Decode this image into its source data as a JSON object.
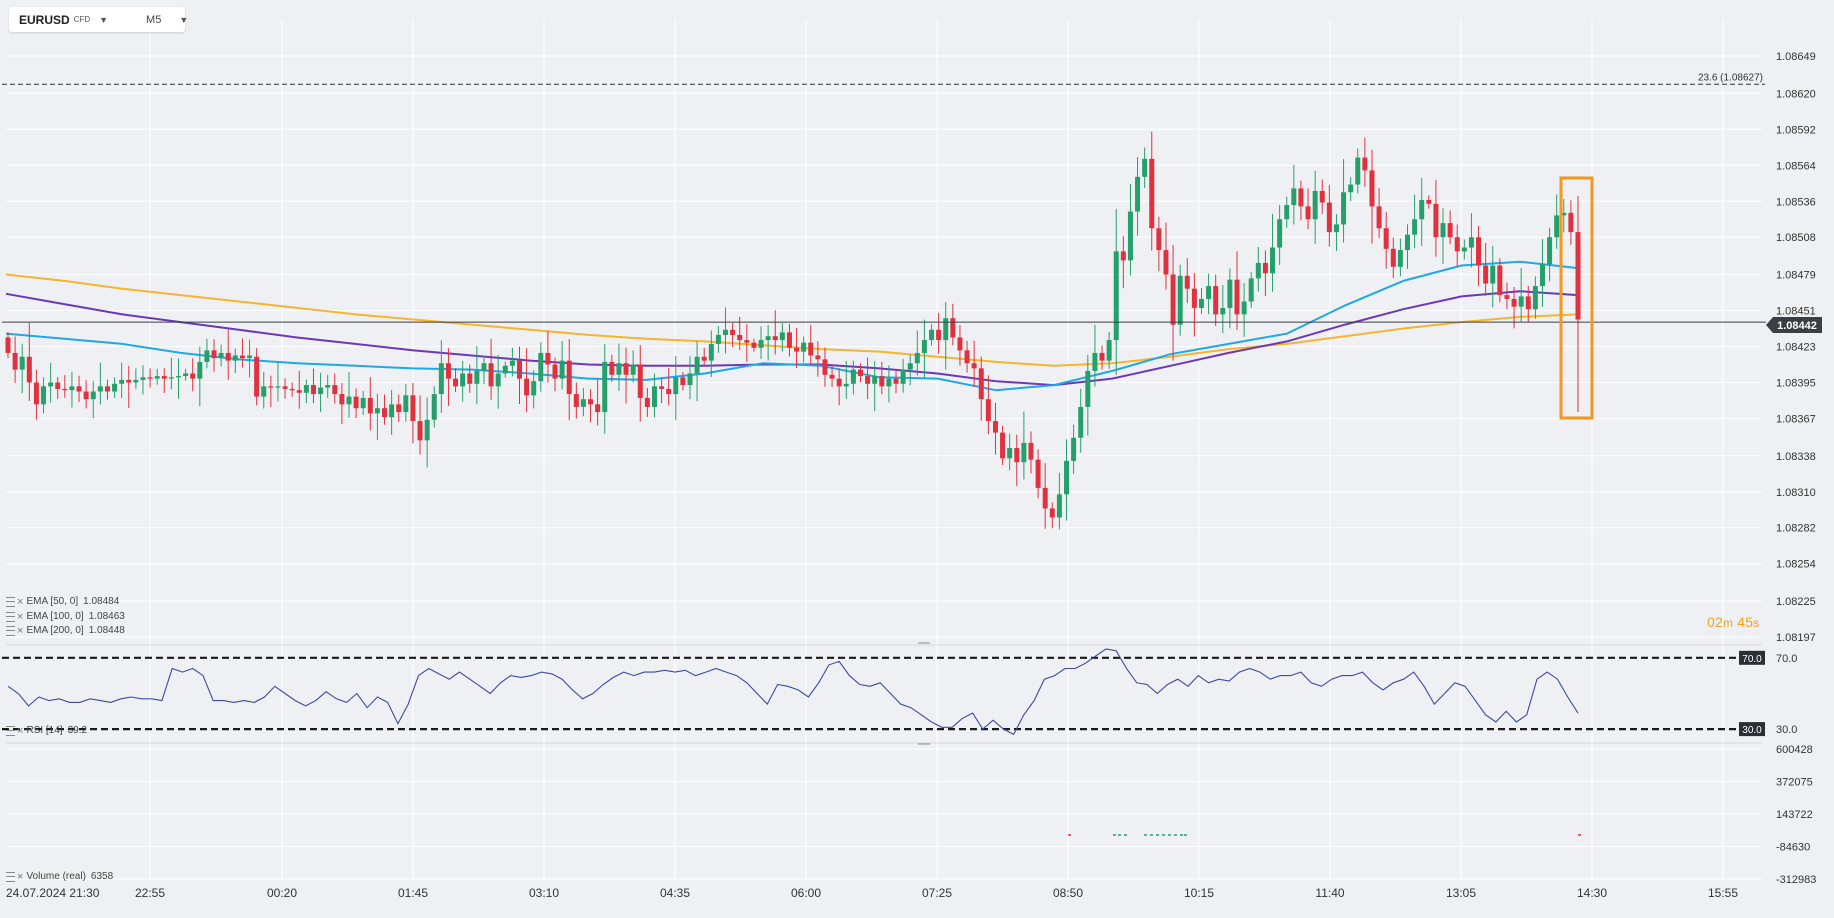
{
  "symbol": {
    "name": "EURUSD",
    "type": "CFD",
    "timeframe": "M5"
  },
  "countdown": {
    "minutes": "02",
    "min_unit": "m",
    "seconds": "45",
    "sec_unit": "s"
  },
  "indicators": {
    "ema50": {
      "label": "EMA  [50,  0]",
      "value": "1.08484",
      "color": "#1ea8e6"
    },
    "ema100": {
      "label": "EMA  [100,  0]",
      "value": "1.08463",
      "color": "#6c38b8"
    },
    "ema200": {
      "label": "EMA  [200,  0]",
      "value": "1.08448",
      "color": "#f5b52e"
    },
    "rsi": {
      "label": "RSI  [14]",
      "value": "39.2",
      "color": "#3d4a9c"
    },
    "volume": {
      "label": "Volume  (real)",
      "value": "6358"
    }
  },
  "fib_label": "23.6 (1.08627)",
  "current_price_label": "1.08442",
  "chart_data": [
    {
      "type": "candlestick",
      "title": "",
      "y_ticks": [
        "1.08649",
        "1.08620",
        "1.08592",
        "1.08564",
        "1.08536",
        "1.08508",
        "1.08479",
        "1.08451",
        "1.08423",
        "1.08395",
        "1.08367",
        "1.08338",
        "1.08310",
        "1.08282",
        "1.08254",
        "1.08225",
        "1.08197"
      ],
      "x_ticks": [
        "24.07.2024  21:30",
        "22:55",
        "00:20",
        "01:45",
        "03:10",
        "04:35",
        "06:00",
        "07:25",
        "08:50",
        "10:15",
        "11:40",
        "13:05",
        "14:30",
        "15:55"
      ],
      "ylim": [
        1.08197,
        1.08649
      ],
      "current_price": 1.08442,
      "fib_level": {
        "label": "23.6",
        "value": 1.08627
      },
      "up_color": "#26a06b",
      "down_color": "#e0313f",
      "closes": [
        1.08418,
        1.08405,
        1.08415,
        1.08395,
        1.08378,
        1.08392,
        1.08395,
        1.0839,
        1.08389,
        1.08392,
        1.08388,
        1.08382,
        1.08388,
        1.08392,
        1.08388,
        1.08394,
        1.08397,
        1.08395,
        1.08397,
        1.08399,
        1.08398,
        1.084,
        1.08398,
        1.08399,
        1.084,
        1.08402,
        1.08398,
        1.08411,
        1.0842,
        1.08414,
        1.08418,
        1.08412,
        1.08416,
        1.08414,
        1.08415,
        1.08384,
        1.08392,
        1.08391,
        1.08392,
        1.0839,
        1.08389,
        1.08387,
        1.08393,
        1.08386,
        1.08391,
        1.08393,
        1.08386,
        1.08378,
        1.08384,
        1.08375,
        1.08383,
        1.08371,
        1.08375,
        1.08368,
        1.08378,
        1.08372,
        1.08385,
        1.08365,
        1.0835,
        1.08366,
        1.08386,
        1.0841,
        1.08398,
        1.08392,
        1.08402,
        1.08394,
        1.08404,
        1.0841,
        1.08392,
        1.08402,
        1.08408,
        1.08412,
        1.08398,
        1.08385,
        1.08396,
        1.08418,
        1.08409,
        1.08398,
        1.08412,
        1.08386,
        1.08376,
        1.08382,
        1.08378,
        1.08372,
        1.08411,
        1.08401,
        1.0841,
        1.08401,
        1.08409,
        1.08383,
        1.08376,
        1.08392,
        1.0839,
        1.08386,
        1.08399,
        1.08393,
        1.08402,
        1.08415,
        1.08412,
        1.08425,
        1.08432,
        1.08436,
        1.08432,
        1.08428,
        1.08426,
        1.08422,
        1.08428,
        1.08431,
        1.08428,
        1.08434,
        1.08422,
        1.08419,
        1.08426,
        1.08416,
        1.08413,
        1.08401,
        1.08398,
        1.08392,
        1.08394,
        1.08405,
        1.084,
        1.08394,
        1.084,
        1.08392,
        1.08398,
        1.08394,
        1.08405,
        1.0841,
        1.08418,
        1.08428,
        1.08436,
        1.08428,
        1.08445,
        1.0843,
        1.0842,
        1.0841,
        1.08406,
        1.08382,
        1.08365,
        1.08356,
        1.08336,
        1.08344,
        1.08333,
        1.08348,
        1.08335,
        1.08313,
        1.08297,
        1.0829,
        1.08308,
        1.08334,
        1.08352,
        1.08376,
        1.08404,
        1.08418,
        1.08412,
        1.08428,
        1.08497,
        1.0849,
        1.08528,
        1.08555,
        1.08569,
        1.08515,
        1.08498,
        1.08479,
        1.0844,
        1.08478,
        1.08468,
        1.08453,
        1.0846,
        1.0847,
        1.08448,
        1.08453,
        1.08475,
        1.08448,
        1.08458,
        1.08476,
        1.08488,
        1.0848,
        1.085,
        1.08522,
        1.08533,
        1.08546,
        1.08532,
        1.08522,
        1.08544,
        1.08535,
        1.08512,
        1.08518,
        1.08543,
        1.08549,
        1.0857,
        1.0856,
        1.08532,
        1.08515,
        1.08499,
        1.08485,
        1.08498,
        1.0851,
        1.08522,
        1.08537,
        1.08534,
        1.08508,
        1.08519,
        1.08508,
        1.08497,
        1.085,
        1.08508,
        1.08486,
        1.08472,
        1.08486,
        1.08463,
        1.0846,
        1.08454,
        1.08462,
        1.08452,
        1.0847,
        1.08487,
        1.08508,
        1.08525,
        1.08527,
        1.08512,
        1.08444
      ],
      "opens_note": "",
      "ema50": [
        1.08433,
        1.08429,
        1.08425,
        1.08418,
        1.08413,
        1.0841,
        1.08408,
        1.08406,
        1.08405,
        1.08402,
        1.08398,
        1.08397,
        1.08402,
        1.0841,
        1.08408,
        1.08399,
        1.08398,
        1.08389,
        1.08393,
        1.08404,
        1.08417,
        1.08425,
        1.08433,
        1.08455,
        1.08474,
        1.08486,
        1.08489,
        1.08484
      ],
      "ema100": [
        1.08464,
        1.08456,
        1.08448,
        1.08442,
        1.08436,
        1.0843,
        1.08425,
        1.0842,
        1.08416,
        1.08412,
        1.08409,
        1.08408,
        1.08408,
        1.08409,
        1.08409,
        1.08406,
        1.08402,
        1.08396,
        1.08393,
        1.08398,
        1.08408,
        1.08418,
        1.08427,
        1.0844,
        1.08452,
        1.08462,
        1.08466,
        1.08463
      ],
      "ema200": [
        1.08479,
        1.08474,
        1.08468,
        1.08463,
        1.08458,
        1.08453,
        1.08448,
        1.08444,
        1.0844,
        1.08436,
        1.08432,
        1.08429,
        1.08427,
        1.08424,
        1.08421,
        1.08419,
        1.08415,
        1.08411,
        1.08408,
        1.0841,
        1.08415,
        1.08421,
        1.08425,
        1.08431,
        1.08437,
        1.08442,
        1.08446,
        1.08448
      ]
    },
    {
      "type": "line",
      "title": "RSI",
      "levels": [
        70.0,
        30.0
      ],
      "level_labels": [
        "70.0",
        "30.0"
      ],
      "ylim": [
        25,
        80
      ],
      "values": [
        54,
        50,
        43,
        48,
        46,
        47,
        45,
        45,
        47,
        46,
        45,
        47,
        48,
        47,
        47,
        46,
        64,
        62,
        64,
        60,
        46,
        46,
        45,
        46,
        45,
        48,
        54,
        50,
        46,
        43,
        46,
        51,
        47,
        45,
        50,
        42,
        48,
        45,
        33,
        44,
        60,
        64,
        61,
        58,
        62,
        58,
        54,
        50,
        56,
        60,
        59,
        60,
        62,
        61,
        58,
        52,
        47,
        50,
        55,
        59,
        62,
        60,
        62,
        62,
        63,
        62,
        63,
        60,
        62,
        64,
        62,
        60,
        56,
        50,
        44,
        55,
        54,
        52,
        48,
        56,
        66,
        68,
        60,
        55,
        54,
        56,
        50,
        44,
        42,
        38,
        34,
        31,
        31,
        36,
        39,
        30,
        35,
        30,
        27,
        38,
        46,
        58,
        60,
        64,
        64,
        67,
        71,
        75,
        74,
        64,
        56,
        55,
        50,
        55,
        58,
        54,
        60,
        56,
        58,
        57,
        62,
        64,
        62,
        58,
        60,
        60,
        62,
        56,
        54,
        58,
        60,
        60,
        62,
        56,
        52,
        56,
        58,
        62,
        54,
        44,
        50,
        56,
        54,
        46,
        38,
        34,
        40,
        34,
        38,
        58,
        62,
        58,
        48,
        39
      ]
    },
    {
      "type": "bar",
      "title": "Volume",
      "y_ticks": [
        "600428",
        "372075",
        "143722",
        "-84630",
        "-312983"
      ],
      "ylim": [
        -312983,
        600428
      ]
    }
  ]
}
